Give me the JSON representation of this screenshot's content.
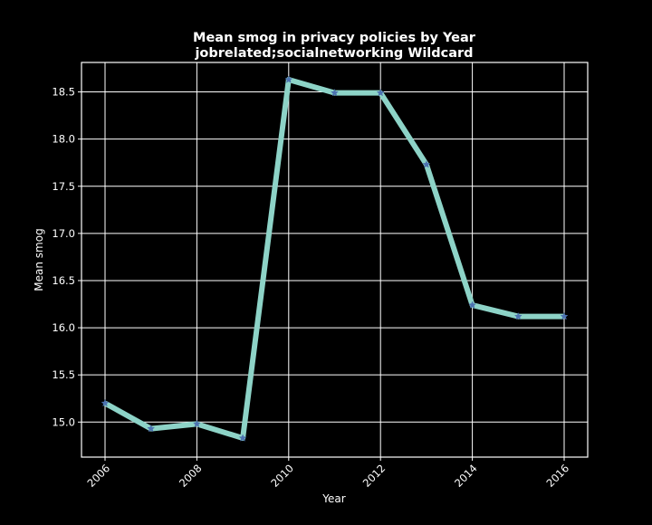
{
  "chart_data": {
    "type": "line",
    "title_lines": [
      "Mean smog in privacy policies by Year",
      "jobrelated;socialnetworking Wildcard"
    ],
    "xlabel": "Year",
    "ylabel": "Mean smog",
    "x": [
      2006,
      2007,
      2008,
      2009,
      2010,
      2011,
      2012,
      2013,
      2014,
      2015,
      2016
    ],
    "series": [
      {
        "values": [
          15.2,
          14.93,
          14.98,
          14.83,
          18.63,
          18.49,
          18.49,
          17.73,
          16.24,
          16.12,
          16.12
        ]
      }
    ],
    "xlim": [
      2006,
      2016
    ],
    "ylim": [
      14.83,
      18.63
    ],
    "x_ticks": [
      2006,
      2008,
      2010,
      2012,
      2014,
      2016
    ],
    "x_tick_labels": [
      "2006",
      "2008",
      "2010",
      "2012",
      "2014",
      "2016"
    ],
    "y_ticks": [
      15.0,
      15.5,
      16.0,
      16.5,
      17.0,
      17.5,
      18.0,
      18.5
    ],
    "y_tick_labels": [
      "15.0",
      "15.5",
      "16.0",
      "16.5",
      "17.0",
      "17.5",
      "18.0",
      "18.5"
    ],
    "grid": true,
    "legend": "none",
    "marker": "star",
    "colors": {
      "background": "#000000",
      "axes_face": "#000000",
      "frame": "#ffffff",
      "grid": "#ffffff",
      "text": "#ffffff",
      "line": "#8dd3c7",
      "marker": "#4c72b0"
    }
  }
}
